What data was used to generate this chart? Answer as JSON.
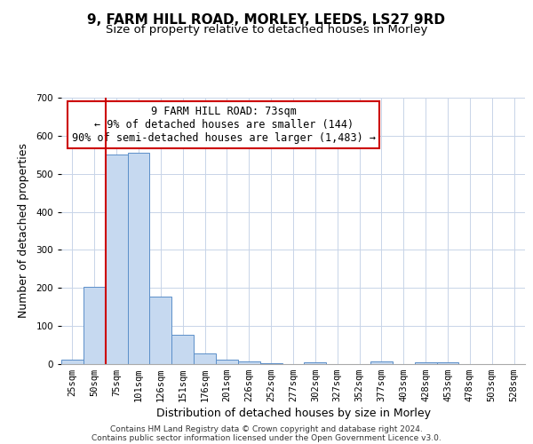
{
  "title": "9, FARM HILL ROAD, MORLEY, LEEDS, LS27 9RD",
  "subtitle": "Size of property relative to detached houses in Morley",
  "xlabel": "Distribution of detached houses by size in Morley",
  "ylabel": "Number of detached properties",
  "bar_labels": [
    "25sqm",
    "50sqm",
    "75sqm",
    "101sqm",
    "126sqm",
    "151sqm",
    "176sqm",
    "201sqm",
    "226sqm",
    "252sqm",
    "277sqm",
    "302sqm",
    "327sqm",
    "352sqm",
    "377sqm",
    "403sqm",
    "428sqm",
    "453sqm",
    "478sqm",
    "503sqm",
    "528sqm"
  ],
  "bar_values": [
    12,
    203,
    551,
    556,
    178,
    76,
    29,
    11,
    7,
    3,
    0,
    5,
    0,
    0,
    8,
    0,
    5,
    4,
    0,
    0,
    0
  ],
  "bar_color": "#c6d9f0",
  "bar_edge_color": "#5b8fc9",
  "vline_color": "#cc0000",
  "annotation_title": "9 FARM HILL ROAD: 73sqm",
  "annotation_line2": "← 9% of detached houses are smaller (144)",
  "annotation_line3": "90% of semi-detached houses are larger (1,483) →",
  "annotation_box_edge_color": "#cc0000",
  "ylim": [
    0,
    700
  ],
  "yticks": [
    0,
    100,
    200,
    300,
    400,
    500,
    600,
    700
  ],
  "footer_line1": "Contains HM Land Registry data © Crown copyright and database right 2024.",
  "footer_line2": "Contains public sector information licensed under the Open Government Licence v3.0.",
  "title_fontsize": 11,
  "subtitle_fontsize": 9.5,
  "axis_label_fontsize": 9,
  "tick_fontsize": 7.5,
  "annotation_fontsize": 8.5,
  "footer_fontsize": 6.5,
  "background_color": "#ffffff",
  "grid_color": "#c8d4e8"
}
